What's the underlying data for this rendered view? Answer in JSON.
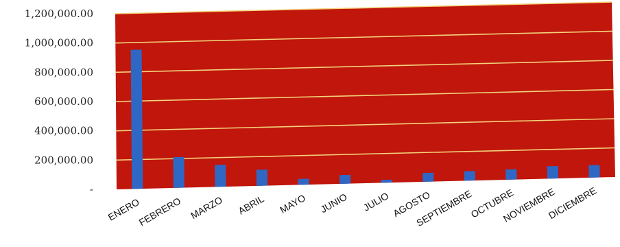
{
  "chart_data": {
    "type": "bar",
    "categories": [
      "ENERO",
      "FEBRERO",
      "MARZO",
      "ABRIL",
      "MAYO",
      "JUNIO",
      "JULIO",
      "AGOSTO",
      "SEPTIEMBRE",
      "OCTUBRE",
      "NOVIEMBRE",
      "DICIEMBRE"
    ],
    "values": [
      950000,
      210000,
      150000,
      110000,
      40000,
      60000,
      20000,
      60000,
      65000,
      70000,
      85000,
      85000
    ],
    "yticks": [
      "",
      "200,000.00",
      "400,000.00",
      "600,000.00",
      "800,000.00",
      "1,000,000.00",
      "1,200,000.00"
    ],
    "ylim": [
      0,
      1200000
    ],
    "title": "",
    "xlabel": "",
    "ylabel": "",
    "grid": true,
    "legend": "none",
    "colors": {
      "plot_background": "#c0160c",
      "bar": "#2f67c4",
      "gridline": "#f2d27a"
    }
  }
}
